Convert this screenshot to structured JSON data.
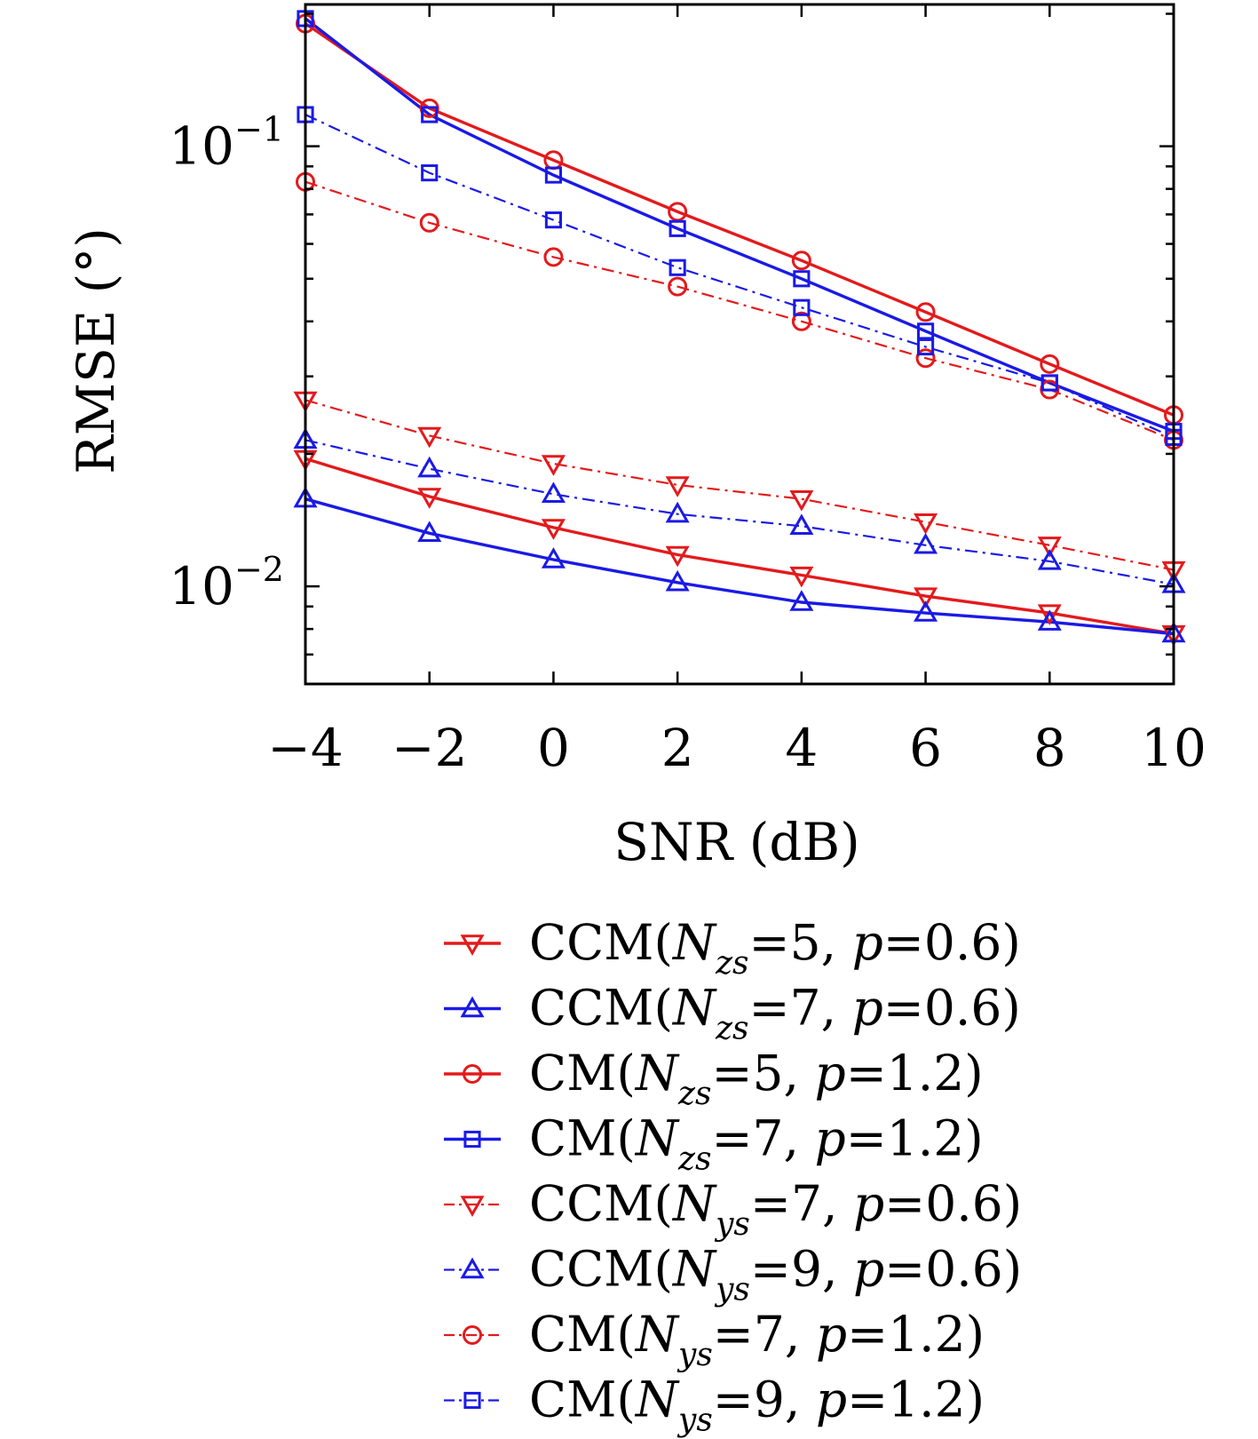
{
  "chart_data": {
    "type": "line",
    "title": "",
    "xlabel": "SNR (dB)",
    "ylabel": "RMSE (°)",
    "yscale": "log",
    "xlim": [
      -4,
      10
    ],
    "ylim": [
      0.006,
      0.21
    ],
    "grid": false,
    "legend_position": "below",
    "x": [
      -4,
      -2,
      0,
      2,
      4,
      6,
      8,
      10
    ],
    "x_tick_labels": [
      "−4",
      "−2",
      "0",
      "2",
      "4",
      "6",
      "8",
      "10"
    ],
    "y_ticks": [
      {
        "value": 0.1,
        "base": "10",
        "exp": "−1"
      },
      {
        "value": 0.01,
        "base": "10",
        "exp": "−2"
      }
    ],
    "series": [
      {
        "name": "CCM(Nzs=5, p=0.6)",
        "label": {
          "pre": "CCM(",
          "sym": "N",
          "sub": "zs",
          "mid": "=5, ",
          "p": "p",
          "post": "=0.6)"
        },
        "color": "#e31a1c",
        "dash": "solid",
        "marker": "triangle-down",
        "values": [
          0.0195,
          0.016,
          0.0136,
          0.0118,
          0.0106,
          0.0095,
          0.0087,
          0.0078
        ]
      },
      {
        "name": "CCM(Nzs=7, p=0.6)",
        "label": {
          "pre": "CCM(",
          "sym": "N",
          "sub": "zs",
          "mid": "=7, ",
          "p": "p",
          "post": "=0.6)"
        },
        "color": "#1a1ae6",
        "dash": "solid",
        "marker": "triangle-up",
        "values": [
          0.0158,
          0.0132,
          0.0115,
          0.0102,
          0.0092,
          0.0087,
          0.0083,
          0.0078
        ]
      },
      {
        "name": "CM(Nzs=5, p=1.2)",
        "label": {
          "pre": "CM(",
          "sym": "N",
          "sub": "zs",
          "mid": "=5, ",
          "p": "p",
          "post": "=1.2)"
        },
        "color": "#e31a1c",
        "dash": "solid",
        "marker": "circle",
        "values": [
          0.19,
          0.122,
          0.093,
          0.071,
          0.055,
          0.042,
          0.032,
          0.0245
        ]
      },
      {
        "name": "CM(Nzs=7, p=1.2)",
        "label": {
          "pre": "CM(",
          "sym": "N",
          "sub": "zs",
          "mid": "=7, ",
          "p": "p",
          "post": "=1.2)"
        },
        "color": "#1a1ae6",
        "dash": "solid",
        "marker": "square",
        "values": [
          0.195,
          0.118,
          0.086,
          0.065,
          0.05,
          0.038,
          0.029,
          0.0225
        ]
      },
      {
        "name": "CCM(Nys=7, p=0.6)",
        "label": {
          "pre": "CCM(",
          "sym": "N",
          "sub": "ys",
          "mid": "=7, ",
          "p": "p",
          "post": "=0.6)"
        },
        "color": "#e31a1c",
        "dash": "dashdot",
        "marker": "triangle-down",
        "values": [
          0.0265,
          0.022,
          0.019,
          0.017,
          0.0158,
          0.014,
          0.0124,
          0.0109
        ]
      },
      {
        "name": "CCM(Nys=9, p=0.6)",
        "label": {
          "pre": "CCM(",
          "sym": "N",
          "sub": "ys",
          "mid": "=9, ",
          "p": "p",
          "post": "=0.6)"
        },
        "color": "#1a1ae6",
        "dash": "dashdot",
        "marker": "triangle-up",
        "values": [
          0.0215,
          0.0185,
          0.0162,
          0.0146,
          0.0137,
          0.0124,
          0.0114,
          0.0101
        ]
      },
      {
        "name": "CM(Nys=7, p=1.2)",
        "label": {
          "pre": "CM(",
          "sym": "N",
          "sub": "ys",
          "mid": "=7, ",
          "p": "p",
          "post": "=1.2)"
        },
        "color": "#e31a1c",
        "dash": "dashdot",
        "marker": "circle",
        "values": [
          0.083,
          0.067,
          0.056,
          0.048,
          0.04,
          0.033,
          0.028,
          0.0215
        ]
      },
      {
        "name": "CM(Nys=9, p=1.2)",
        "label": {
          "pre": "CM(",
          "sym": "N",
          "sub": "ys",
          "mid": "=9, ",
          "p": "p",
          "post": "=1.2)"
        },
        "color": "#1a1ae6",
        "dash": "dashdot",
        "marker": "square",
        "values": [
          0.118,
          0.087,
          0.068,
          0.053,
          0.043,
          0.035,
          0.029,
          0.0218
        ]
      }
    ]
  }
}
